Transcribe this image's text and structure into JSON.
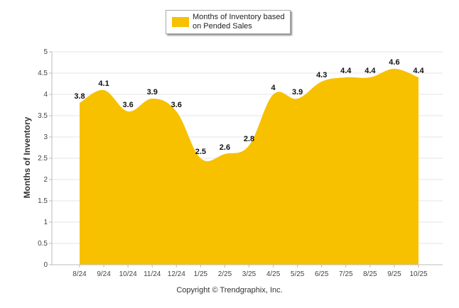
{
  "chart_data": {
    "type": "area",
    "categories": [
      "8/24",
      "9/24",
      "10/24",
      "11/24",
      "12/24",
      "1/25",
      "2/25",
      "3/25",
      "4/25",
      "5/25",
      "6/25",
      "7/25",
      "8/25",
      "9/25",
      "10/25"
    ],
    "series": [
      {
        "name": "Months of Inventory based on Pended Sales",
        "values": [
          3.8,
          4.1,
          3.6,
          3.9,
          3.6,
          2.5,
          2.6,
          2.8,
          4,
          3.9,
          4.3,
          4.4,
          4.4,
          4.6,
          4.4
        ],
        "color": "#f7c100"
      }
    ],
    "ylabel": "Months of Inventory",
    "xlabel": "",
    "ylim": [
      0,
      5
    ],
    "yticks": [
      "0",
      "0.5",
      "1",
      "1.5",
      "2",
      "2.5",
      "3",
      "3.5",
      "4",
      "4.5",
      "5"
    ],
    "grid": true,
    "legend_position": "top-center",
    "data_labels": true
  },
  "footer": {
    "copyright": "Copyright © Trendgraphix, Inc."
  }
}
